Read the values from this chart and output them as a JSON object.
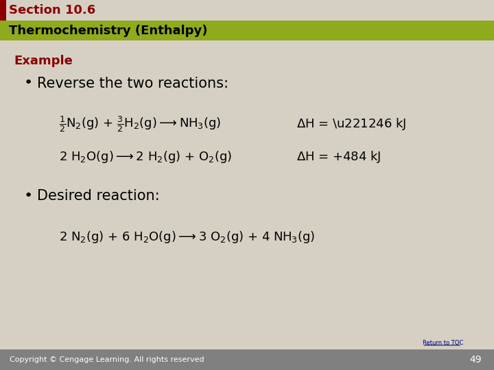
{
  "bg_color": "#d6d0c4",
  "header_bar_color": "#8b0000",
  "subheader_bar_color": "#8faa1c",
  "header_text": "Section 10.6",
  "subheader_text": "Thermochemistry (Enthalpy)",
  "example_label": "Example",
  "bullet1_text": "Reverse the two reactions:",
  "bullet2_text": "Desired reaction:",
  "footer_text": "Copyright © Cengage Learning. All rights reserved",
  "page_number": "49",
  "accent_color": "#8b0000",
  "text_color": "#1a1a1a",
  "footer_bg": "#808080",
  "header_bar_height": 0.055,
  "subheader_bar_height": 0.055
}
